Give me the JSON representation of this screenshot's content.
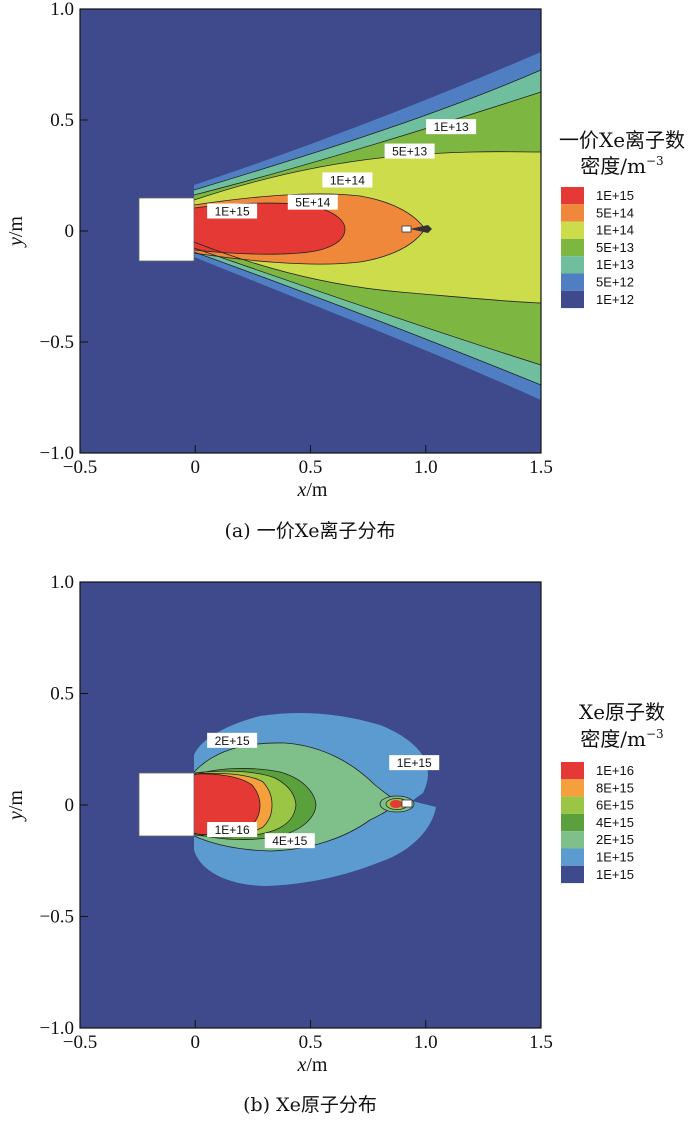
{
  "chart_data": [
    {
      "type": "contour",
      "panel": "a",
      "caption": "(a) 一价Xe离子分布",
      "xlabel_var": "x",
      "xlabel_unit": "/m",
      "ylabel_var": "y",
      "ylabel_unit": "/m",
      "xlim": [
        -0.5,
        1.5
      ],
      "ylim": [
        -1.0,
        1.0
      ],
      "xticks": [
        "−0.5",
        "0",
        "0.5",
        "1.0",
        "1.5"
      ],
      "yticks": [
        "1.0",
        "0.5",
        "0",
        "−0.5",
        "−1.0"
      ],
      "legend_title_line1": "一价Xe离子数",
      "legend_title_line2": "密度/m",
      "legend_title_sup": "−3",
      "levels": [
        {
          "label": "1E+15",
          "color": "#e53935"
        },
        {
          "label": "5E+14",
          "color": "#f0883c"
        },
        {
          "label": "1E+14",
          "color": "#ccdc4a"
        },
        {
          "label": "5E+13",
          "color": "#7db742"
        },
        {
          "label": "1E+13",
          "color": "#6fbf9f"
        },
        {
          "label": "5E+12",
          "color": "#4f7fc2"
        },
        {
          "label": "1E+12",
          "color": "#3e4a8c"
        }
      ],
      "background_color": "#3e4a8c",
      "contour_labels": [
        {
          "text": "1E+13",
          "x": 1.11,
          "y": 0.47
        },
        {
          "text": "5E+13",
          "x": 0.93,
          "y": 0.36
        },
        {
          "text": "1E+14",
          "x": 0.66,
          "y": 0.23
        },
        {
          "text": "5E+14",
          "x": 0.51,
          "y": 0.13
        },
        {
          "text": "1E+15",
          "x": 0.16,
          "y": 0.09
        }
      ]
    },
    {
      "type": "contour",
      "panel": "b",
      "caption": "(b) Xe原子分布",
      "xlabel_var": "x",
      "xlabel_unit": "/m",
      "ylabel_var": "y",
      "ylabel_unit": "/m",
      "xlim": [
        -0.5,
        1.5
      ],
      "ylim": [
        -1.0,
        1.0
      ],
      "xticks": [
        "−0.5",
        "0",
        "0.5",
        "1.0",
        "1.5"
      ],
      "yticks": [
        "1.0",
        "0.5",
        "0",
        "−0.5",
        "−1.0"
      ],
      "legend_title_line1": "Xe原子数",
      "legend_title_line2": "密度/m",
      "legend_title_sup": "−3",
      "levels": [
        {
          "label": "1E+16",
          "color": "#e53935"
        },
        {
          "label": "8E+15",
          "color": "#f5a03c"
        },
        {
          "label": "6E+15",
          "color": "#9bc545"
        },
        {
          "label": "4E+15",
          "color": "#5aa03c"
        },
        {
          "label": "2E+15",
          "color": "#7fbf8a"
        },
        {
          "label": "1E+15",
          "color": "#5b9bd0"
        },
        {
          "label": "1E+15",
          "color": "#3e4a8c"
        }
      ],
      "background_color": "#3e4a8c",
      "contour_labels": [
        {
          "text": "2E+15",
          "x": 0.16,
          "y": 0.29
        },
        {
          "text": "1E+15",
          "x": 0.95,
          "y": 0.19
        },
        {
          "text": "1E+16",
          "x": 0.16,
          "y": -0.11
        },
        {
          "text": "4E+15",
          "x": 0.41,
          "y": -0.16
        }
      ]
    }
  ]
}
